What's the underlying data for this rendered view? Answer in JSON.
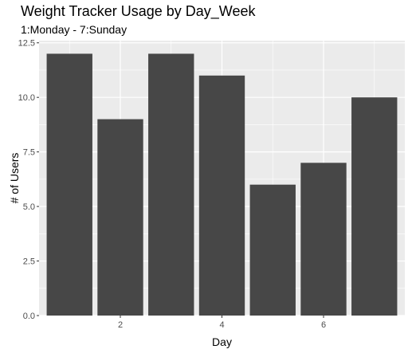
{
  "chart_data": {
    "type": "bar",
    "title": "Weight Tracker Usage by Day_Week",
    "subtitle": "1:Monday - 7:Sunday",
    "xlabel": "Day",
    "ylabel": "# of Users",
    "x": [
      1,
      2,
      3,
      4,
      5,
      6,
      7
    ],
    "values": [
      12,
      9,
      12,
      11,
      6,
      7,
      10
    ],
    "xlim": [
      0.4,
      7.6
    ],
    "ylim": [
      0,
      12.6
    ],
    "x_ticks": [
      2,
      4,
      6
    ],
    "y_ticks": [
      0.0,
      2.5,
      5.0,
      7.5,
      10.0,
      12.5
    ],
    "x_tick_labels": [
      "2",
      "4",
      "6"
    ],
    "y_tick_labels": [
      "0.0",
      "2.5",
      "5.0",
      "7.5",
      "10.0",
      "12.5"
    ],
    "grid": true,
    "colors": {
      "bar": "#474747",
      "panel": "#ebebeb",
      "grid": "#ffffff"
    }
  }
}
